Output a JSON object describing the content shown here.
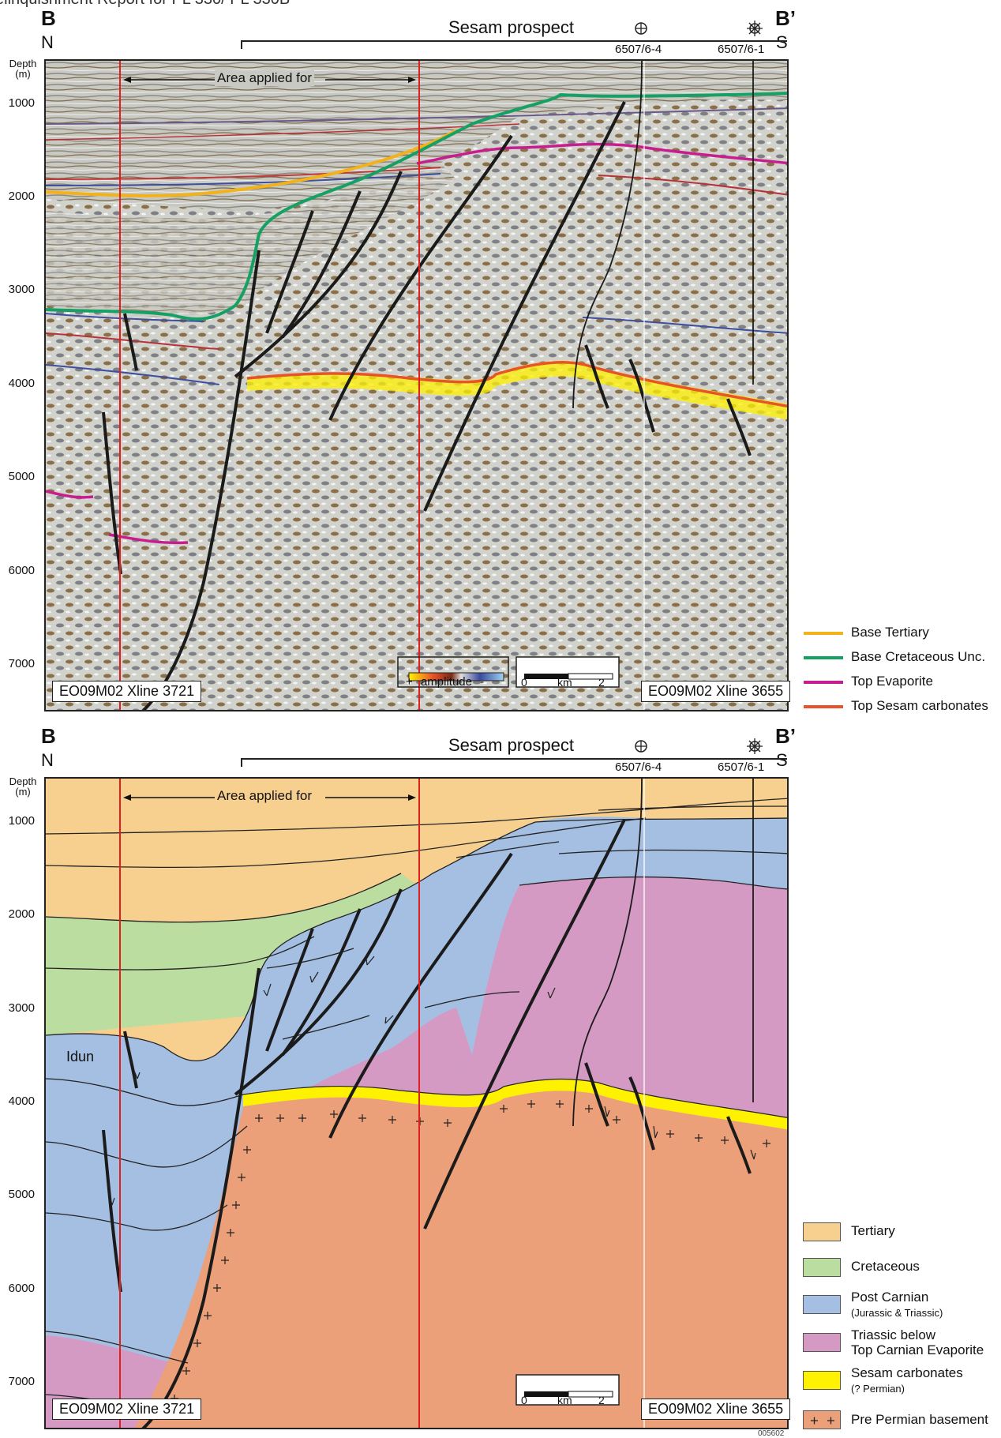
{
  "doc_title": "elinquishment Report for PL 330/ PL 330B",
  "top_section": {
    "left_letter": "B",
    "right_letter": "B’",
    "left_dir": "N",
    "right_dir": "S",
    "prospect": "Sesam prospect",
    "wells": [
      "6507/6-4",
      "6507/6-1"
    ],
    "depth_header_1": "Depth",
    "depth_header_2": "(m)",
    "depth_ticks": [
      "1000",
      "2000",
      "3000",
      "4000",
      "5000",
      "6000",
      "7000"
    ],
    "area_label": "Area applied for",
    "xline_left": "EO09M02 Xline 3721",
    "xline_right": "EO09M02 Xline 3655",
    "amplitude_plus": "+",
    "amplitude_label": "amplitude",
    "amplitude_minus": "-",
    "scale_zero": "0",
    "scale_unit": "km",
    "scale_two": "2"
  },
  "bottom_section": {
    "left_letter": "B",
    "right_letter": "B’",
    "left_dir": "N",
    "right_dir": "S",
    "prospect": "Sesam prospect",
    "wells": [
      "6507/6-4",
      "6507/6-1"
    ],
    "depth_header_1": "Depth",
    "depth_header_2": "(m)",
    "depth_ticks": [
      "1000",
      "2000",
      "3000",
      "4000",
      "5000",
      "6000",
      "7000"
    ],
    "area_label": "Area applied for",
    "idun_label": "Idun",
    "xline_left": "EO09M02 Xline 3721",
    "xline_right": "EO09M02 Xline 3655",
    "scale_zero": "0",
    "scale_unit": "km",
    "scale_two": "2"
  },
  "horizon_legend": [
    {
      "label": "Base Tertiary",
      "color": "#f2b21c"
    },
    {
      "label": "Base Cretaceous Unc.",
      "color": "#16a064"
    },
    {
      "label": "Top Evaporite",
      "color": "#c81d8e"
    },
    {
      "label": "Top Sesam carbonates",
      "color": "#e8542a"
    }
  ],
  "unit_legend": [
    {
      "label": "Tertiary",
      "sub": "",
      "color": "#f7d08f"
    },
    {
      "label": "Cretaceous",
      "sub": "",
      "color": "#bcdda0"
    },
    {
      "label": "Post Carnian",
      "sub": "(Jurassic & Triassic)",
      "color": "#a5bfe3"
    },
    {
      "label": "Triassic below",
      "sub": "Top Carnian Evaporite",
      "color": "#d49ac4"
    },
    {
      "label": "Sesam carbonates",
      "sub": "(? Permian)",
      "color": "#fff200"
    },
    {
      "label": "Pre Permian basement",
      "sub": "",
      "color": "#eca07a"
    }
  ],
  "figure_number": "005602"
}
